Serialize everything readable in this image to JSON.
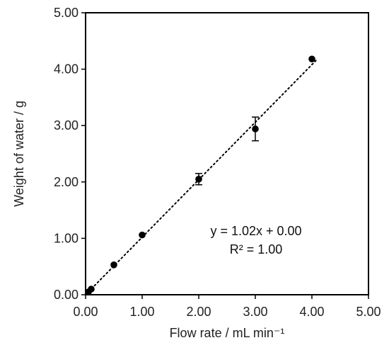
{
  "chart_data": {
    "type": "scatter",
    "title": "",
    "xlabel": "Flow rate / mL min⁻¹",
    "ylabel": "Weight of water / g",
    "xlim": [
      0,
      5
    ],
    "ylim": [
      0,
      5
    ],
    "x_ticks": [
      "0.00",
      "1.00",
      "2.00",
      "3.00",
      "4.00",
      "5.00"
    ],
    "y_ticks": [
      "0.00",
      "1.00",
      "2.00",
      "3.00",
      "4.00",
      "5.00"
    ],
    "grid": false,
    "legend": "none",
    "marker_color": "#000000",
    "points": [
      {
        "x": 0.05,
        "y": 0.05,
        "err": 0
      },
      {
        "x": 0.1,
        "y": 0.1,
        "err": 0
      },
      {
        "x": 0.5,
        "y": 0.53,
        "err": 0
      },
      {
        "x": 1.0,
        "y": 1.06,
        "err": 0
      },
      {
        "x": 2.0,
        "y": 2.05,
        "err": 0.1
      },
      {
        "x": 3.0,
        "y": 2.94,
        "err": 0.21
      },
      {
        "x": 4.0,
        "y": 4.18,
        "err": 0
      }
    ],
    "trendline": {
      "slope": 1.02,
      "intercept": 0.0,
      "x_range": [
        0,
        4.1
      ],
      "style": "dotted"
    },
    "annotations": {
      "equation": "y = 1.02x + 0.00",
      "r2": "R² = 1.00"
    }
  }
}
